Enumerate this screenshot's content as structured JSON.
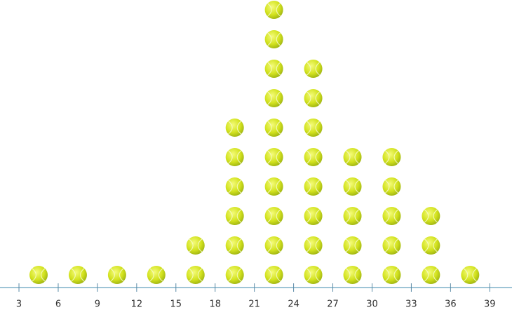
{
  "chart_data": {
    "type": "dot",
    "x": [
      4.5,
      7.5,
      10.5,
      13.5,
      16.5,
      19.5,
      22.5,
      25.5,
      28.5,
      31.5,
      34.5,
      37.5
    ],
    "counts": [
      1,
      1,
      1,
      1,
      2,
      6,
      10,
      8,
      5,
      5,
      3,
      1
    ],
    "xlim": [
      1.55,
      40.7
    ],
    "xticks": [
      3,
      6,
      9,
      12,
      15,
      18,
      21,
      24,
      27,
      30,
      33,
      36,
      39
    ],
    "color": "#c8dc1e"
  }
}
